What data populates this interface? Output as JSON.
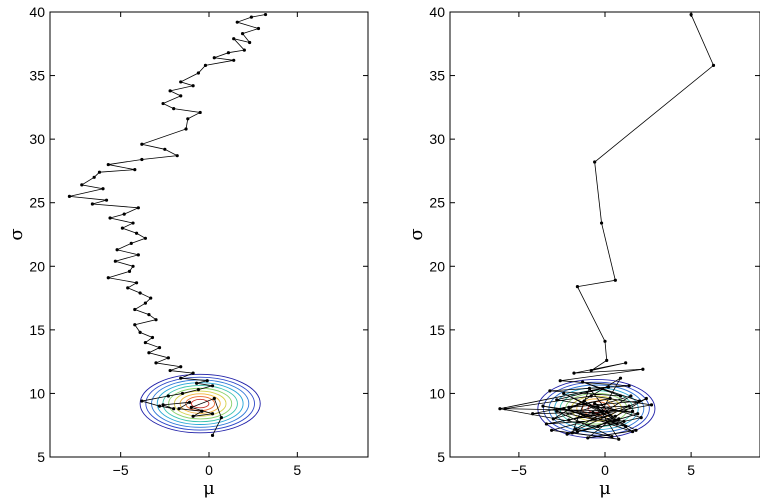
{
  "chart_data": [
    {
      "type": "scatter",
      "title": "",
      "xlabel": "μ",
      "ylabel": "σ",
      "xlim": [
        -9,
        9
      ],
      "ylim": [
        5,
        40
      ],
      "xticks": [
        -5,
        0,
        5
      ],
      "yticks": [
        5,
        10,
        15,
        20,
        25,
        30,
        35,
        40
      ],
      "grid": false,
      "contour": {
        "center": [
          -0.5,
          9.2
        ],
        "levels": 10
      },
      "series": [
        {
          "x": [
            3.2,
            2.4,
            1.6,
            2.8,
            1.9,
            2.3,
            1.4,
            2.0,
            1.1,
            0.3,
            1.4,
            -0.2,
            -0.6,
            -1.6,
            -0.9,
            -2.2,
            -1.6,
            -2.6,
            -2.0,
            -0.5,
            -1.2,
            -1.3,
            -3.8,
            -2.5,
            -1.8,
            -3.8,
            -5.7,
            -4.2,
            -6.2,
            -6.5,
            -7.2,
            -6.0,
            -7.9,
            -5.8,
            -6.6,
            -4.0,
            -4.8,
            -5.6,
            -4.3,
            -4.9,
            -4.1,
            -3.6,
            -4.4,
            -5.2,
            -4.0,
            -5.3,
            -4.3,
            -4.5,
            -5.7,
            -4.1,
            -4.6,
            -3.9,
            -3.3,
            -3.6,
            -4.2,
            -3.4,
            -3.0,
            -4.2,
            -3.9,
            -3.2,
            -3.6,
            -2.8,
            -3.4,
            -2.3,
            -3.0,
            -1.6,
            -2.2,
            -0.9,
            -1.6,
            -0.1,
            -0.7,
            0.2,
            -0.6,
            -1.5,
            -2.3,
            -3.8,
            -2.8,
            -2.0,
            -2.6,
            -1.1,
            -1.7,
            -0.4,
            -0.9,
            0.2,
            -1.0,
            0.3,
            0.7,
            0.2
          ],
          "y": [
            39.8,
            39.6,
            39.2,
            38.7,
            38.3,
            37.6,
            37.9,
            37.0,
            36.8,
            36.4,
            36.2,
            35.8,
            35.2,
            34.5,
            34.2,
            33.8,
            33.4,
            32.8,
            32.4,
            32.1,
            31.6,
            30.8,
            29.6,
            29.2,
            28.7,
            28.4,
            28.0,
            27.6,
            27.4,
            27.0,
            26.4,
            26.1,
            25.5,
            25.2,
            24.9,
            24.6,
            24.1,
            23.8,
            23.4,
            23.0,
            22.6,
            22.2,
            21.8,
            21.3,
            20.9,
            20.4,
            20.0,
            19.6,
            19.1,
            18.7,
            18.3,
            17.9,
            17.5,
            17.1,
            16.6,
            16.2,
            15.8,
            15.4,
            14.8,
            14.4,
            14.0,
            13.6,
            13.2,
            12.8,
            12.4,
            12.1,
            11.8,
            11.6,
            11.2,
            11.0,
            10.8,
            10.6,
            10.3,
            10.0,
            9.8,
            9.4,
            9.0,
            8.8,
            9.1,
            9.3,
            8.8,
            8.6,
            8.2,
            8.4,
            8.9,
            9.6,
            8.1,
            6.7
          ]
        }
      ]
    },
    {
      "type": "scatter",
      "title": "",
      "xlabel": "μ",
      "ylabel": "σ",
      "xlim": [
        -9,
        9
      ],
      "ylim": [
        5,
        40
      ],
      "xticks": [
        -5,
        0,
        5
      ],
      "yticks": [
        5,
        10,
        15,
        20,
        25,
        30,
        35,
        40
      ],
      "grid": false,
      "contour": {
        "center": [
          -0.5,
          8.8
        ],
        "levels": 10
      },
      "series": [
        {
          "x": [
            5.0,
            6.3,
            -0.6,
            -0.2,
            0.6,
            -1.6,
            0.0,
            0.1,
            -0.8,
            1.2,
            -1.8,
            2.2,
            -2.6,
            1.4,
            -3.2,
            0.9,
            -1.3,
            2.0,
            -2.1,
            0.3,
            -4.2,
            1.6,
            -5.8,
            -0.8,
            2.7,
            -3.4,
            0.8,
            -1.6,
            1.9,
            -2.8,
            0.2,
            -6.1,
            -0.4,
            2.4,
            -2.2,
            1.1,
            -3.6,
            0.6,
            -1.0,
            1.8,
            -2.4,
            -0.2,
            0.9,
            -3.0,
            1.5,
            -1.7,
            0.4,
            -2.8,
            1.2,
            -0.6,
            2.1,
            -1.9,
            -0.9,
            0.7,
            -2.4,
            1.6,
            -1.2,
            0.3,
            -3.1,
            0.8,
            -0.4,
            1.4,
            -2.1,
            -0.7,
            0.5
          ],
          "y": [
            39.8,
            35.8,
            28.2,
            23.4,
            18.9,
            18.4,
            14.1,
            12.6,
            11.8,
            12.4,
            11.6,
            11.9,
            11.0,
            10.6,
            10.2,
            9.8,
            10.9,
            9.4,
            8.9,
            9.6,
            8.4,
            8.6,
            8.8,
            9.8,
            9.1,
            7.6,
            8.0,
            7.0,
            8.4,
            9.5,
            10.5,
            8.8,
            7.4,
            9.6,
            6.8,
            7.8,
            9.0,
            8.2,
            6.5,
            7.1,
            10.0,
            8.6,
            11.2,
            8.0,
            9.8,
            7.2,
            6.6,
            8.6,
            7.4,
            9.2,
            8.1,
            6.9,
            10.4,
            7.6,
            8.8,
            7.0,
            9.4,
            8.3,
            7.1,
            6.4,
            8.9,
            9.0,
            7.9,
            8.5,
            7.8
          ]
        }
      ]
    }
  ]
}
